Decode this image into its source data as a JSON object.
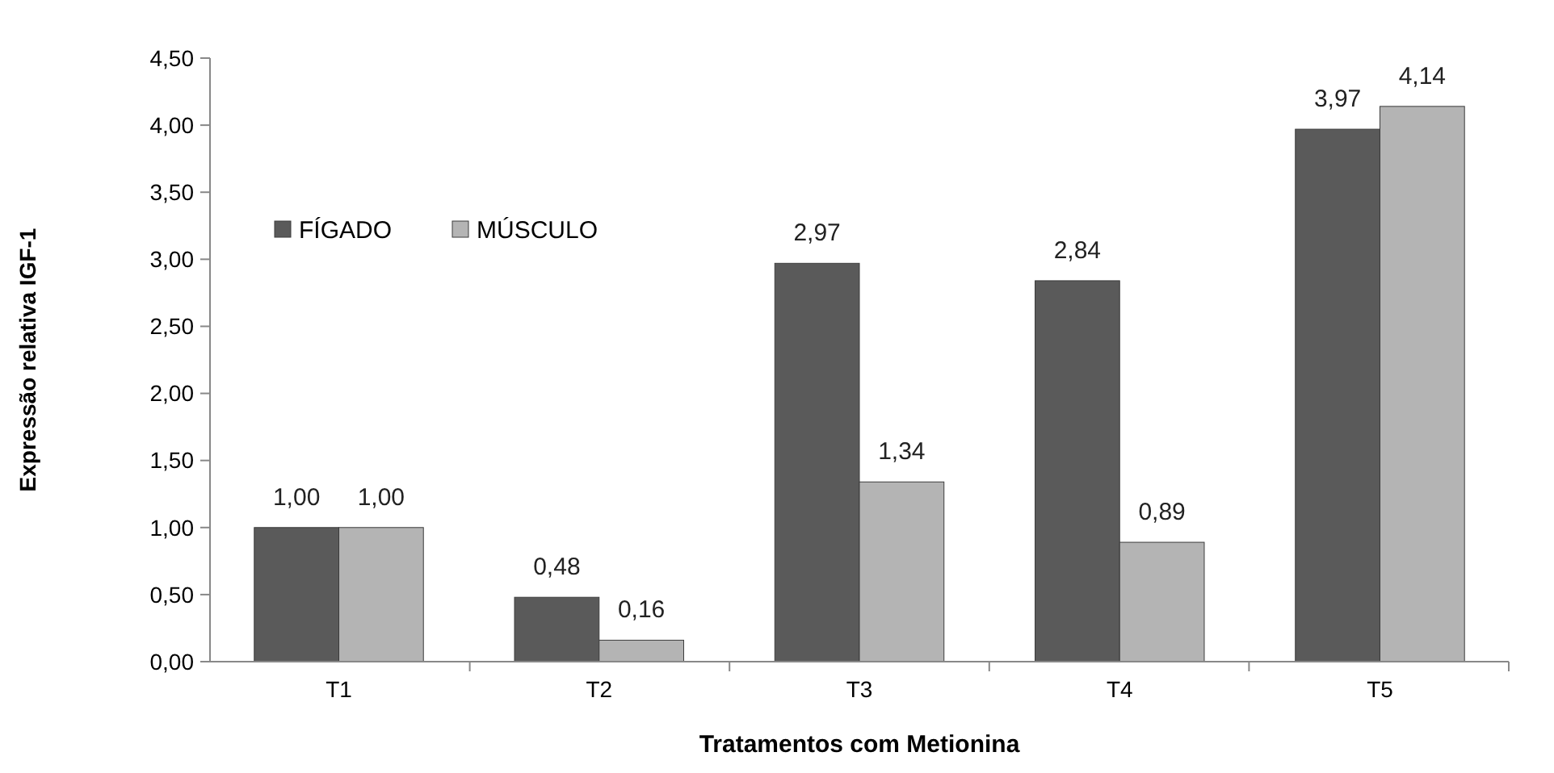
{
  "chart_data": {
    "type": "bar",
    "xlabel": "Tratamentos com Metionina",
    "ylabel": "Expressão relativa IGF-1",
    "categories": [
      "T1",
      "T2",
      "T3",
      "T4",
      "T5"
    ],
    "series": [
      {
        "name": "FÍGADO",
        "color": "#5a5a5a",
        "values": [
          1.0,
          0.48,
          2.97,
          2.84,
          3.97
        ],
        "value_labels": [
          "1,00",
          "0,48",
          "2,97",
          "2,84",
          "3,97"
        ]
      },
      {
        "name": "MÚSCULO",
        "color": "#b4b4b4",
        "values": [
          1.0,
          0.16,
          1.34,
          0.89,
          4.14
        ],
        "value_labels": [
          "1,00",
          "0,16",
          "1,34",
          "0,89",
          "4,14"
        ]
      }
    ],
    "ylim": [
      0,
      4.5
    ],
    "yticks": [
      {
        "value": 0,
        "label": "0,00"
      },
      {
        "value": 0.5,
        "label": "0,50"
      },
      {
        "value": 1,
        "label": "1,00"
      },
      {
        "value": 1.5,
        "label": "1,50"
      },
      {
        "value": 2,
        "label": "2,00"
      },
      {
        "value": 2.5,
        "label": "2,50"
      },
      {
        "value": 3,
        "label": "3,00"
      },
      {
        "value": 3.5,
        "label": "3,50"
      },
      {
        "value": 4,
        "label": "4,00"
      },
      {
        "value": 4.5,
        "label": "4,50"
      }
    ],
    "legend": "top left",
    "grid": false
  }
}
